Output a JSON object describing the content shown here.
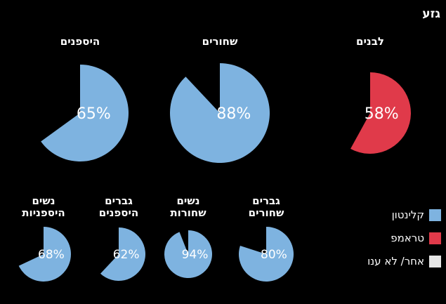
{
  "title": "גזע",
  "colors": {
    "clinton": "#7eb3e0",
    "trump": "#e03a4a",
    "other": "#e6e6e6",
    "background": "#000000"
  },
  "legend": [
    {
      "label": "קלינטון",
      "color": "#7eb3e0"
    },
    {
      "label": "טראמפ",
      "color": "#e03a4a"
    },
    {
      "label": "אחר/ לא ענו",
      "color": "#e6e6e6"
    }
  ],
  "chart_data": [
    {
      "type": "pie",
      "title": "לבנים",
      "value": 58,
      "value_label": "58%",
      "candidate": "טראמפ",
      "color": "#e03a4a"
    },
    {
      "type": "pie",
      "title": "שחורים",
      "value": 88,
      "value_label": "88%",
      "candidate": "קלינטון",
      "color": "#7eb3e0"
    },
    {
      "type": "pie",
      "title": "היספנים",
      "value": 65,
      "value_label": "65%",
      "candidate": "קלינטון",
      "color": "#7eb3e0"
    },
    {
      "type": "pie",
      "title": "גברים\nשחורים",
      "value": 80,
      "value_label": "80%",
      "candidate": "קלינטון",
      "color": "#7eb3e0"
    },
    {
      "type": "pie",
      "title": "נשים\nשחורות",
      "value": 94,
      "value_label": "94%",
      "candidate": "קלינטון",
      "color": "#7eb3e0"
    },
    {
      "type": "pie",
      "title": "גברים\nהיספנים",
      "value": 62,
      "value_label": "62%",
      "candidate": "קלינטון",
      "color": "#7eb3e0"
    },
    {
      "type": "pie",
      "title": "נשים\nהיספניות",
      "value": 68,
      "value_label": "68%",
      "candidate": "קלינטון",
      "color": "#7eb3e0"
    }
  ]
}
